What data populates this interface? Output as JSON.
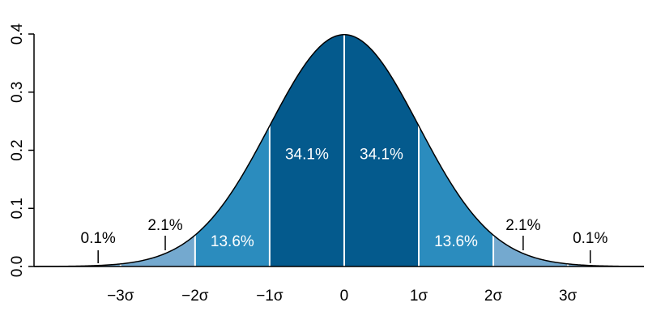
{
  "chart_data": {
    "type": "normal-density",
    "mean": 0,
    "sd": 1,
    "xlim": [
      -4.16,
      4.02
    ],
    "ylim": [
      0,
      0.4
    ],
    "xticks": [
      {
        "value": -3,
        "label": "−3σ"
      },
      {
        "value": -2,
        "label": "−2σ"
      },
      {
        "value": -1,
        "label": "−1σ"
      },
      0,
      {
        "value": 1,
        "label": "1σ"
      },
      {
        "value": 2,
        "label": "2σ"
      },
      {
        "value": 3,
        "label": "3σ"
      }
    ],
    "yticks": [
      {
        "value": 0,
        "label": "0.0"
      },
      0.1,
      0.2,
      0.3,
      0.4
    ],
    "edges": [
      -3,
      -2,
      -1,
      0,
      1,
      2,
      3
    ],
    "shares": [
      0.1,
      2.1,
      13.6,
      34.1,
      34.1,
      13.6,
      2.1,
      0.1
    ],
    "value_labels": [
      "0.1%",
      "2.1%",
      "13.6%",
      "34.1%",
      "34.1%",
      "13.6%",
      "2.1%",
      "0.1%"
    ],
    "colors": [
      "#74a9cf",
      "#74a9cf",
      "#2b8cbe",
      "#045a8d",
      "#045a8d",
      "#2b8cbe",
      "#74a9cf",
      "#74a9cf"
    ]
  }
}
